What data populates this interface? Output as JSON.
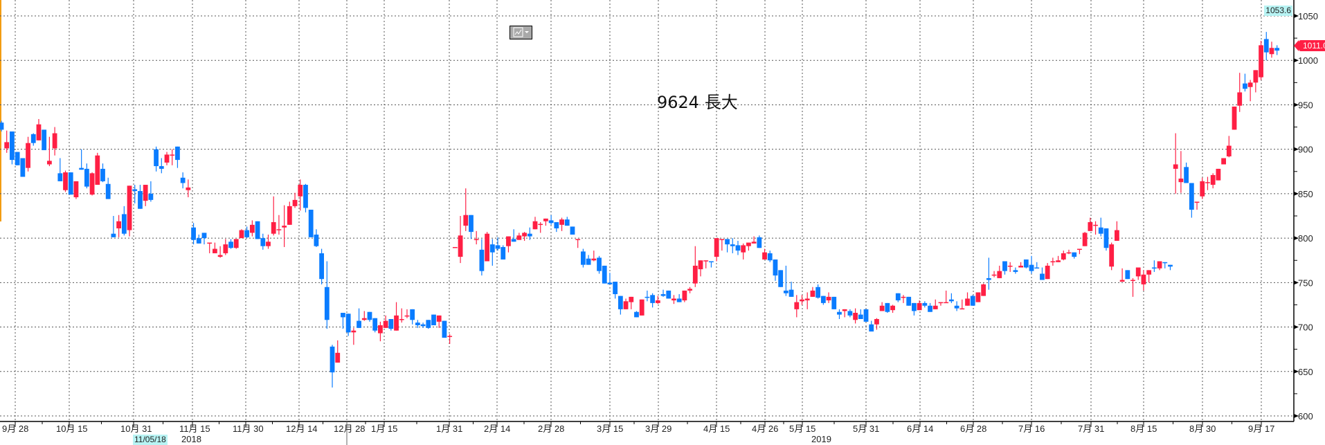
{
  "chart_data": {
    "type": "candlestick",
    "title": "9624 長大",
    "colors": {
      "up": "#ff1f44",
      "down": "#0a7cff",
      "grid": "#555555"
    },
    "grid": true,
    "y_axis": {
      "position": "right",
      "ylim": [
        600,
        1050
      ],
      "ticks": [
        "600",
        "650",
        "700",
        "750",
        "800",
        "850",
        "900",
        "950",
        "1000",
        "1050"
      ]
    },
    "x_axis": {
      "tick_labels": [
        "9月 28",
        "10月 15",
        "10月 31",
        "11月 15",
        "11月 30",
        "12月 14",
        "12月 28",
        "1月 15",
        "1月 31",
        "2月 14",
        "2月 28",
        "3月 15",
        "3月 29",
        "4月 15",
        "4月 26",
        "5月 15",
        "5月 31",
        "6月 14",
        "6月 28",
        "7月 16",
        "7月 31",
        "8月 15",
        "8月 30",
        "9月 17"
      ],
      "year_labels": [
        "2018",
        "2019"
      ]
    },
    "cursor_date": "11/05/18",
    "high_label": "1053.6",
    "last_price": "1011.0",
    "ohlc_columns": [
      "open",
      "high",
      "low",
      "close"
    ],
    "ohlc": [
      [
        930,
        932,
        920,
        922
      ],
      [
        901,
        921,
        896,
        908
      ],
      [
        920,
        920,
        883,
        888
      ],
      [
        897,
        897,
        882,
        882
      ],
      [
        890,
        890,
        869,
        869
      ],
      [
        879,
        914,
        875,
        907
      ],
      [
        917,
        918,
        904,
        907
      ],
      [
        910,
        934,
        910,
        928
      ],
      [
        922,
        922,
        899,
        899
      ],
      [
        883,
        914,
        881,
        887
      ],
      [
        901,
        925,
        893,
        918
      ],
      [
        873,
        890,
        864,
        864
      ],
      [
        854,
        876,
        852,
        874
      ],
      [
        874,
        874,
        849,
        849
      ],
      [
        846,
        864,
        844,
        864
      ],
      [
        879,
        900,
        877,
        877
      ],
      [
        878,
        884,
        856,
        858
      ],
      [
        849,
        874,
        848,
        873
      ],
      [
        860,
        896,
        860,
        893
      ],
      [
        878,
        884,
        863,
        864
      ],
      [
        861,
        868,
        844,
        844
      ],
      [
        805,
        825,
        801,
        801
      ],
      [
        811,
        826,
        801,
        819
      ],
      [
        827,
        836,
        803,
        805
      ],
      [
        809,
        859,
        802,
        859
      ],
      [
        855,
        860,
        839,
        853
      ],
      [
        853,
        860,
        833,
        833
      ],
      [
        842,
        860,
        836,
        860
      ],
      [
        850,
        864,
        841,
        843
      ],
      [
        900,
        903,
        875,
        881
      ],
      [
        881,
        890,
        873,
        878
      ],
      [
        885,
        897,
        882,
        894
      ],
      [
        893,
        900,
        882,
        894
      ],
      [
        903,
        903,
        879,
        888
      ],
      [
        868,
        874,
        856,
        862
      ],
      [
        854,
        866,
        846,
        857
      ],
      [
        812,
        817,
        793,
        798
      ],
      [
        800,
        804,
        794,
        794
      ],
      [
        806,
        806,
        793,
        800
      ],
      [
        794,
        795,
        783,
        795
      ],
      [
        783,
        795,
        783,
        788
      ],
      [
        779,
        791,
        778,
        781
      ],
      [
        783,
        799,
        781,
        793
      ],
      [
        796,
        799,
        788,
        789
      ],
      [
        789,
        799,
        788,
        799
      ],
      [
        800,
        810,
        800,
        809
      ],
      [
        809,
        813,
        800,
        801
      ],
      [
        806,
        820,
        802,
        815
      ],
      [
        819,
        819,
        799,
        799
      ],
      [
        800,
        805,
        787,
        791
      ],
      [
        791,
        804,
        788,
        796
      ],
      [
        805,
        847,
        803,
        818
      ],
      [
        809,
        826,
        804,
        810
      ],
      [
        812,
        837,
        790,
        814
      ],
      [
        815,
        841,
        815,
        836
      ],
      [
        836,
        851,
        834,
        843
      ],
      [
        847,
        866,
        831,
        860
      ],
      [
        860,
        861,
        829,
        834
      ],
      [
        832,
        832,
        801,
        801
      ],
      [
        804,
        810,
        790,
        791
      ],
      [
        783,
        788,
        748,
        754
      ],
      [
        745,
        774,
        698,
        708
      ],
      [
        678,
        680,
        632,
        649
      ],
      [
        660,
        685,
        660,
        671
      ],
      [
        716,
        716,
        698,
        711
      ],
      [
        715,
        715,
        690,
        694
      ],
      [
        694,
        699,
        680,
        696
      ],
      [
        707,
        721,
        699,
        699
      ],
      [
        708,
        718,
        707,
        710
      ],
      [
        717,
        717,
        706,
        708
      ],
      [
        710,
        710,
        694,
        696
      ],
      [
        693,
        706,
        684,
        702
      ],
      [
        699,
        713,
        699,
        707
      ],
      [
        709,
        709,
        696,
        698
      ],
      [
        696,
        728,
        696,
        713
      ],
      [
        708,
        721,
        705,
        709
      ],
      [
        712,
        720,
        710,
        713
      ],
      [
        720,
        720,
        703,
        708
      ],
      [
        705,
        708,
        699,
        702
      ],
      [
        703,
        705,
        699,
        701
      ],
      [
        708,
        708,
        698,
        699
      ],
      [
        714,
        714,
        702,
        702
      ],
      [
        706,
        713,
        699,
        713
      ],
      [
        707,
        707,
        688,
        688
      ],
      [
        689,
        692,
        681,
        690
      ],
      [
        790,
        790,
        790,
        790
      ],
      [
        779,
        825,
        772,
        803
      ],
      [
        814,
        856,
        808,
        826
      ],
      [
        826,
        826,
        799,
        807
      ],
      [
        798,
        808,
        793,
        799
      ],
      [
        787,
        799,
        758,
        763
      ],
      [
        774,
        807,
        774,
        805
      ],
      [
        793,
        799,
        769,
        784
      ],
      [
        792,
        801,
        786,
        788
      ],
      [
        790,
        792,
        776,
        776
      ],
      [
        791,
        802,
        784,
        802
      ],
      [
        799,
        810,
        796,
        796
      ],
      [
        798,
        806,
        798,
        803
      ],
      [
        802,
        807,
        797,
        806
      ],
      [
        805,
        812,
        798,
        802
      ],
      [
        810,
        824,
        810,
        819
      ],
      [
        815,
        818,
        806,
        816
      ],
      [
        819,
        822,
        814,
        822
      ],
      [
        820,
        826,
        815,
        817
      ],
      [
        818,
        818,
        807,
        811
      ],
      [
        815,
        823,
        808,
        821
      ],
      [
        821,
        824,
        814,
        814
      ],
      [
        813,
        813,
        804,
        804
      ],
      [
        798,
        799,
        789,
        799
      ],
      [
        785,
        788,
        767,
        770
      ],
      [
        777,
        781,
        770,
        770
      ],
      [
        775,
        786,
        774,
        777
      ],
      [
        778,
        780,
        760,
        763
      ],
      [
        769,
        769,
        749,
        749
      ],
      [
        750,
        761,
        748,
        748
      ],
      [
        751,
        751,
        732,
        737
      ],
      [
        735,
        735,
        714,
        720
      ],
      [
        720,
        732,
        720,
        729
      ],
      [
        728,
        734,
        720,
        734
      ],
      [
        717,
        718,
        711,
        711
      ],
      [
        713,
        731,
        713,
        731
      ],
      [
        734,
        741,
        729,
        733
      ],
      [
        736,
        738,
        722,
        727
      ],
      [
        727,
        735,
        726,
        730
      ],
      [
        737,
        742,
        734,
        735
      ],
      [
        741,
        741,
        732,
        732
      ],
      [
        730,
        736,
        726,
        732
      ],
      [
        732,
        737,
        728,
        728
      ],
      [
        730,
        741,
        728,
        741
      ],
      [
        741,
        745,
        738,
        743
      ],
      [
        749,
        791,
        745,
        769
      ],
      [
        765,
        775,
        757,
        775
      ],
      [
        774,
        775,
        766,
        775
      ],
      [
        774,
        774,
        767,
        773
      ],
      [
        779,
        800,
        774,
        800
      ],
      [
        798,
        799,
        786,
        799
      ],
      [
        799,
        799,
        784,
        793
      ],
      [
        793,
        800,
        783,
        791
      ],
      [
        792,
        797,
        781,
        786
      ],
      [
        784,
        794,
        776,
        792
      ],
      [
        791,
        795,
        786,
        795
      ],
      [
        794,
        802,
        794,
        796
      ],
      [
        801,
        803,
        789,
        789
      ],
      [
        776,
        788,
        776,
        784
      ],
      [
        783,
        786,
        773,
        775
      ],
      [
        776,
        776,
        752,
        758
      ],
      [
        764,
        764,
        745,
        745
      ],
      [
        741,
        769,
        735,
        738
      ],
      [
        742,
        751,
        734,
        734
      ],
      [
        720,
        736,
        711,
        728
      ],
      [
        729,
        736,
        725,
        731
      ],
      [
        730,
        739,
        720,
        732
      ],
      [
        734,
        745,
        734,
        741
      ],
      [
        745,
        748,
        732,
        733
      ],
      [
        735,
        735,
        725,
        727
      ],
      [
        730,
        739,
        727,
        734
      ],
      [
        734,
        734,
        720,
        720
      ],
      [
        717,
        720,
        709,
        714
      ],
      [
        718,
        720,
        711,
        720
      ],
      [
        718,
        720,
        711,
        713
      ],
      [
        708,
        721,
        704,
        716
      ],
      [
        714,
        720,
        709,
        709
      ],
      [
        720,
        720,
        706,
        706
      ],
      [
        703,
        707,
        695,
        695
      ],
      [
        703,
        710,
        697,
        709
      ],
      [
        718,
        728,
        718,
        724
      ],
      [
        727,
        727,
        716,
        717
      ],
      [
        719,
        725,
        716,
        724
      ],
      [
        738,
        738,
        728,
        730
      ],
      [
        733,
        736,
        727,
        734
      ],
      [
        734,
        734,
        724,
        724
      ],
      [
        727,
        727,
        713,
        718
      ],
      [
        719,
        730,
        719,
        727
      ],
      [
        727,
        729,
        722,
        724
      ],
      [
        724,
        727,
        717,
        717
      ],
      [
        720,
        731,
        720,
        724
      ],
      [
        727,
        728,
        724,
        728
      ],
      [
        727,
        741,
        727,
        728
      ],
      [
        731,
        738,
        727,
        729
      ],
      [
        724,
        729,
        718,
        721
      ],
      [
        720,
        731,
        720,
        721
      ],
      [
        724,
        739,
        724,
        732
      ],
      [
        735,
        736,
        724,
        724
      ],
      [
        728,
        739,
        728,
        739
      ],
      [
        735,
        749,
        735,
        748
      ],
      [
        755,
        778,
        742,
        753
      ],
      [
        758,
        763,
        756,
        759
      ],
      [
        755,
        769,
        755,
        763
      ],
      [
        774,
        774,
        759,
        763
      ],
      [
        768,
        773,
        762,
        769
      ],
      [
        764,
        767,
        760,
        762
      ],
      [
        767,
        773,
        767,
        769
      ],
      [
        776,
        776,
        766,
        767
      ],
      [
        770,
        780,
        760,
        763
      ],
      [
        767,
        773,
        766,
        766
      ],
      [
        760,
        767,
        753,
        753
      ],
      [
        754,
        772,
        754,
        769
      ],
      [
        773,
        778,
        769,
        774
      ],
      [
        773,
        780,
        773,
        775
      ],
      [
        776,
        786,
        775,
        783
      ],
      [
        783,
        787,
        782,
        784
      ],
      [
        784,
        784,
        777,
        779
      ],
      [
        787,
        788,
        782,
        788
      ],
      [
        791,
        807,
        791,
        806
      ],
      [
        808,
        823,
        808,
        818
      ],
      [
        814,
        819,
        804,
        815
      ],
      [
        812,
        823,
        802,
        805
      ],
      [
        811,
        811,
        786,
        789
      ],
      [
        768,
        795,
        764,
        793
      ],
      [
        797,
        819,
        797,
        809
      ],
      [
        751,
        766,
        751,
        753
      ],
      [
        764,
        764,
        754,
        754
      ],
      [
        752,
        755,
        734,
        753
      ],
      [
        757,
        767,
        753,
        767
      ],
      [
        748,
        764,
        741,
        759
      ],
      [
        759,
        764,
        750,
        764
      ],
      [
        767,
        775,
        762,
        766
      ],
      [
        766,
        774,
        764,
        774
      ],
      [
        773,
        773,
        766,
        772
      ],
      [
        770,
        770,
        764,
        768
      ],
      [
        878,
        918,
        850,
        883
      ],
      [
        863,
        898,
        851,
        867
      ],
      [
        880,
        885,
        862,
        862
      ],
      [
        862,
        862,
        823,
        832
      ],
      [
        840,
        841,
        832,
        841
      ],
      [
        847,
        868,
        844,
        864
      ],
      [
        862,
        869,
        854,
        863
      ],
      [
        860,
        873,
        856,
        871
      ],
      [
        865,
        878,
        865,
        878
      ],
      [
        883,
        890,
        883,
        890
      ],
      [
        892,
        915,
        891,
        904
      ],
      [
        922,
        948,
        922,
        948
      ],
      [
        949,
        986,
        942,
        964
      ],
      [
        974,
        985,
        965,
        968
      ],
      [
        970,
        978,
        954,
        975
      ],
      [
        975,
        989,
        964,
        989
      ],
      [
        981,
        1022,
        978,
        1017
      ],
      [
        1024,
        1032,
        1000,
        1009
      ],
      [
        1007,
        1021,
        1003,
        1014
      ],
      [
        1014,
        1017,
        1006,
        1011
      ]
    ]
  },
  "toolbar": {
    "chart_type_icon": "line-chart-icon",
    "dropdown_icon": "caret-down-icon"
  }
}
